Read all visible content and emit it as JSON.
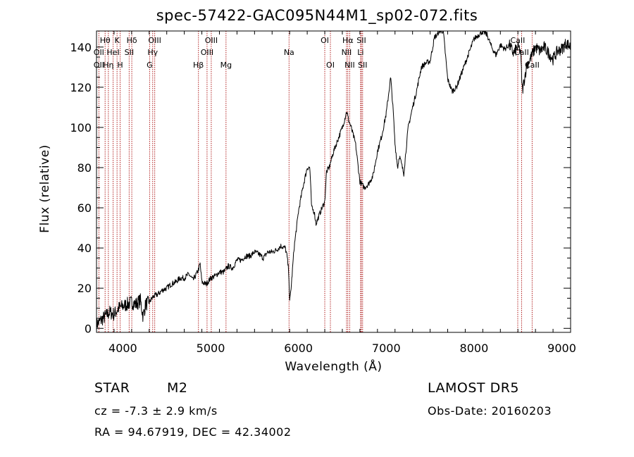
{
  "colors": {
    "spectrum": "#000000",
    "lines": "#b22222",
    "axes": "#000000"
  },
  "info": {
    "class": "STAR",
    "subclass": "M2",
    "survey": "LAMOST DR5",
    "cz": "cz = -7.3 ± 2.9 km/s",
    "obs_date": "Obs-Date: 20160203",
    "radec": "RA =  94.67919, DEC =  42.34002"
  },
  "chart_data": {
    "type": "line",
    "title": "spec-57422-GAC095N44M1_sp02-072.fits",
    "xlabel": "Wavelength (Å)",
    "ylabel": "Flux (relative)",
    "xlim": [
      3700,
      9100
    ],
    "ylim": [
      -2,
      148
    ],
    "xticks": [
      4000,
      5000,
      6000,
      7000,
      8000,
      9000
    ],
    "yticks": [
      0,
      20,
      40,
      60,
      80,
      100,
      120,
      140
    ],
    "grid": false,
    "series": [
      {
        "x": [
          3700,
          3750,
          3800,
          3850,
          3900,
          3950,
          4000,
          4050,
          4100,
          4150,
          4200,
          4230,
          4260,
          4300,
          4350,
          4400,
          4450,
          4500,
          4550,
          4600,
          4650,
          4700,
          4750,
          4800,
          4850,
          4880,
          4900,
          4950,
          5000,
          5050,
          5100,
          5150,
          5200,
          5250,
          5300,
          5350,
          5400,
          5450,
          5500,
          5550,
          5600,
          5650,
          5700,
          5750,
          5800,
          5850,
          5870,
          5890,
          5900,
          5920,
          5950,
          6000,
          6050,
          6100,
          6130,
          6150,
          6180,
          6200,
          6250,
          6300,
          6320,
          6350,
          6400,
          6450,
          6500,
          6550,
          6570,
          6600,
          6650,
          6700,
          6750,
          6800,
          6850,
          6900,
          6950,
          7000,
          7050,
          7080,
          7100,
          7130,
          7150,
          7200,
          7250,
          7300,
          7350,
          7400,
          7450,
          7500,
          7550,
          7580,
          7600,
          7650,
          7700,
          7750,
          7800,
          7850,
          7900,
          7950,
          8000,
          8050,
          8100,
          8150,
          8200,
          8250,
          8300,
          8350,
          8400,
          8450,
          8500,
          8530,
          8550,
          8600,
          8650,
          8700,
          8750,
          8800,
          8850,
          8900,
          8950,
          9000,
          9050,
          9100
        ],
        "y": [
          2,
          4,
          6,
          8,
          7,
          10,
          11,
          12,
          13,
          12,
          14,
          6,
          12,
          13,
          16,
          17,
          19,
          20,
          22,
          23,
          25,
          25,
          27,
          24,
          28,
          32,
          23,
          22,
          25,
          26,
          28,
          28,
          31,
          30,
          34,
          34,
          36,
          36,
          38,
          37,
          35,
          38,
          38,
          39,
          41,
          40,
          36,
          28,
          13,
          22,
          40,
          58,
          70,
          80,
          80,
          60,
          58,
          52,
          58,
          63,
          78,
          80,
          88,
          94,
          100,
          108,
          104,
          100,
          92,
          73,
          70,
          72,
          76,
          88,
          96,
          107,
          125,
          108,
          92,
          80,
          86,
          77,
          100,
          110,
          119,
          130,
          132,
          133,
          145,
          146,
          148,
          148,
          124,
          118,
          120,
          126,
          132,
          138,
          144,
          146,
          148,
          146,
          140,
          136,
          141,
          139,
          141,
          137,
          140,
          138,
          118,
          131,
          135,
          140,
          138,
          140,
          137,
          134,
          138,
          139,
          142,
          140
        ]
      }
    ],
    "annotations": [
      {
        "label": "Hθ",
        "wl": 3798,
        "row": 0
      },
      {
        "label": "OII",
        "wl": 3727,
        "row": 1
      },
      {
        "label": "OII",
        "wl": 3727,
        "row": 2
      },
      {
        "label": "Hη",
        "wl": 3835,
        "row": 2
      },
      {
        "label": "K",
        "wl": 3934,
        "row": 0
      },
      {
        "label": "HeI",
        "wl": 3889,
        "row": 1
      },
      {
        "label": "H",
        "wl": 3969,
        "row": 2
      },
      {
        "label": "Hδ",
        "wl": 4102,
        "row": 0
      },
      {
        "label": "SII",
        "wl": 4072,
        "row": 1
      },
      {
        "label": "OIII",
        "wl": 4363,
        "row": 0
      },
      {
        "label": "Hγ",
        "wl": 4340,
        "row": 1
      },
      {
        "label": "G",
        "wl": 4305,
        "row": 2
      },
      {
        "label": "Hβ",
        "wl": 4861,
        "row": 2
      },
      {
        "label": "OIII",
        "wl": 5007,
        "row": 0
      },
      {
        "label": "OIII",
        "wl": 4959,
        "row": 1
      },
      {
        "label": "Mg",
        "wl": 5175,
        "row": 2
      },
      {
        "label": "Na",
        "wl": 5893,
        "row": 1
      },
      {
        "label": "OI",
        "wl": 6300,
        "row": 0
      },
      {
        "label": "OI",
        "wl": 6364,
        "row": 2
      },
      {
        "label": "Hα",
        "wl": 6563,
        "row": 0
      },
      {
        "label": "SII",
        "wl": 6717,
        "row": 0
      },
      {
        "label": "NII",
        "wl": 6548,
        "row": 1
      },
      {
        "label": "Li",
        "wl": 6708,
        "row": 1
      },
      {
        "label": "NII",
        "wl": 6584,
        "row": 2
      },
      {
        "label": "SII",
        "wl": 6731,
        "row": 2
      },
      {
        "label": "CaII",
        "wl": 8498,
        "row": 0
      },
      {
        "label": "CaII",
        "wl": 8542,
        "row": 1
      },
      {
        "label": "CaII",
        "wl": 8662,
        "row": 2
      }
    ]
  }
}
